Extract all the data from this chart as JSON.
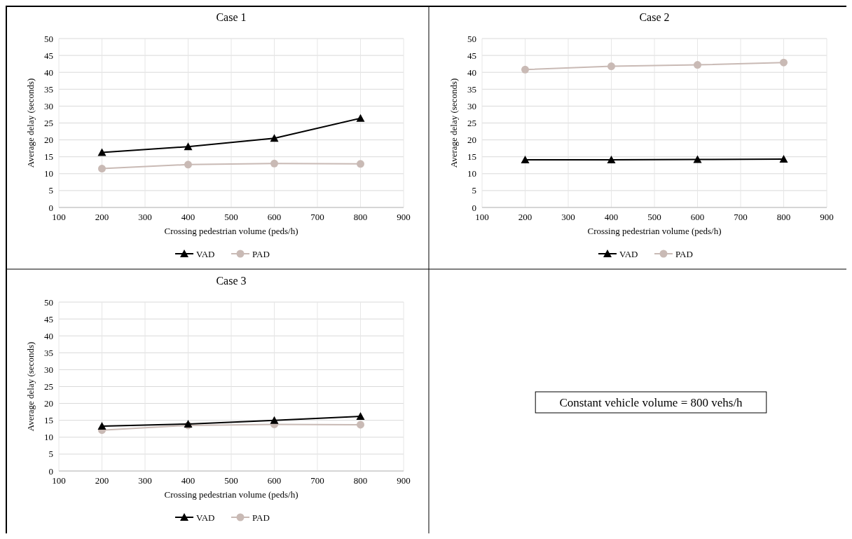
{
  "chart_data": [
    {
      "type": "line",
      "title": "Case 1",
      "xlabel": "Crossing pedestrian volume (peds/h)",
      "ylabel": "Average delay (seconds)",
      "x": [
        200,
        400,
        600,
        800
      ],
      "xlim": [
        100,
        900
      ],
      "xticks": [
        100,
        200,
        300,
        400,
        500,
        600,
        700,
        800,
        900
      ],
      "ylim": [
        0,
        50
      ],
      "yticks": [
        0,
        5,
        10,
        15,
        20,
        25,
        30,
        35,
        40,
        45,
        50
      ],
      "grid": true,
      "legend": "bottom",
      "series": [
        {
          "name": "VAD",
          "color": "#000000",
          "marker": "triangle",
          "values": [
            16.3,
            18.0,
            20.5,
            26.4
          ]
        },
        {
          "name": "PAD",
          "color": "#c9bab5",
          "marker": "circle",
          "values": [
            11.5,
            12.7,
            13.0,
            12.9
          ]
        }
      ]
    },
    {
      "type": "line",
      "title": "Case 2",
      "xlabel": "Crossing pedestrian volume (peds/h)",
      "ylabel": "Average delay (seconds)",
      "x": [
        200,
        400,
        600,
        800
      ],
      "xlim": [
        100,
        900
      ],
      "xticks": [
        100,
        200,
        300,
        400,
        500,
        600,
        700,
        800,
        900
      ],
      "ylim": [
        0,
        50
      ],
      "yticks": [
        0,
        5,
        10,
        15,
        20,
        25,
        30,
        35,
        40,
        45,
        50
      ],
      "grid": true,
      "legend": "bottom",
      "series": [
        {
          "name": "VAD",
          "color": "#000000",
          "marker": "triangle",
          "values": [
            14.1,
            14.1,
            14.2,
            14.3
          ]
        },
        {
          "name": "PAD",
          "color": "#c9bab5",
          "marker": "circle",
          "values": [
            40.8,
            41.8,
            42.2,
            42.9
          ]
        }
      ]
    },
    {
      "type": "line",
      "title": "Case 3",
      "xlabel": "Crossing pedestrian volume (peds/h)",
      "ylabel": "Average delay (seconds)",
      "x": [
        200,
        400,
        600,
        800
      ],
      "xlim": [
        100,
        900
      ],
      "xticks": [
        100,
        200,
        300,
        400,
        500,
        600,
        700,
        800,
        900
      ],
      "ylim": [
        0,
        50
      ],
      "yticks": [
        0,
        5,
        10,
        15,
        20,
        25,
        30,
        35,
        40,
        45,
        50
      ],
      "grid": true,
      "legend": "bottom",
      "series": [
        {
          "name": "VAD",
          "color": "#000000",
          "marker": "triangle",
          "values": [
            13.3,
            13.9,
            15.0,
            16.2
          ]
        },
        {
          "name": "PAD",
          "color": "#c9bab5",
          "marker": "circle",
          "values": [
            12.1,
            13.5,
            13.8,
            13.7
          ]
        }
      ]
    },
    {
      "type": "other",
      "annotations": [
        "Constant vehicle volume = 800 vehs/h"
      ]
    }
  ]
}
